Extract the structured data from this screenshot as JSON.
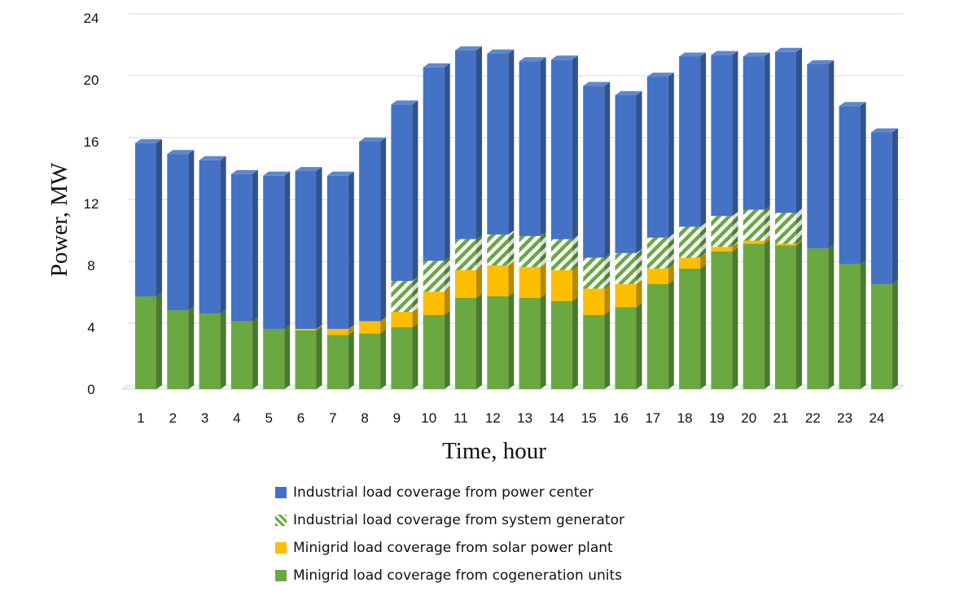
{
  "chart_data": {
    "type": "bar",
    "stacked": true,
    "three_d": true,
    "xlabel": "Time, hour",
    "ylabel": "Power, MW",
    "ylim": [
      0,
      24
    ],
    "yticks": [
      "0",
      "4",
      "8",
      "12",
      "16",
      "20",
      "24"
    ],
    "grid": true,
    "legend_position": "bottom",
    "categories": [
      "1",
      "2",
      "3",
      "4",
      "5",
      "6",
      "7",
      "8",
      "9",
      "10",
      "11",
      "12",
      "13",
      "14",
      "15",
      "16",
      "17",
      "18",
      "19",
      "20",
      "21",
      "22",
      "23",
      "24"
    ],
    "series": [
      {
        "name": "Minigrid load coverage from cogeneration units",
        "color": "#6aa842",
        "pattern": "solid",
        "values": [
          6.0,
          5.1,
          4.9,
          4.4,
          3.9,
          3.8,
          3.5,
          3.6,
          4.0,
          4.8,
          5.9,
          6.0,
          5.9,
          5.7,
          4.8,
          5.3,
          6.8,
          7.8,
          8.9,
          9.4,
          9.3,
          9.1,
          8.1,
          6.8
        ]
      },
      {
        "name": "Minigrid load coverage from solar power plant",
        "color": "#ffbe00",
        "pattern": "solid",
        "values": [
          0.0,
          0.0,
          0.0,
          0.0,
          0.0,
          0.1,
          0.4,
          0.8,
          1.0,
          1.5,
          1.8,
          2.0,
          2.0,
          2.0,
          1.7,
          1.5,
          1.0,
          0.7,
          0.3,
          0.2,
          0.1,
          0.0,
          0.0,
          0.0
        ]
      },
      {
        "name": "Industrial load coverage from system generator",
        "color": "#6aa842",
        "pattern": "hatch",
        "values": [
          0.0,
          0.0,
          0.0,
          0.0,
          0.0,
          0.0,
          0.0,
          0.0,
          2.0,
          2.0,
          2.0,
          2.0,
          2.0,
          2.0,
          2.0,
          2.0,
          2.0,
          2.0,
          2.0,
          2.0,
          2.0,
          0.0,
          0.0,
          0.0
        ]
      },
      {
        "name": "Industrial load coverage from power center",
        "color": "#4472c4",
        "pattern": "solid",
        "values": [
          9.9,
          10.1,
          9.9,
          9.5,
          9.9,
          10.2,
          9.9,
          11.6,
          11.4,
          12.5,
          12.2,
          11.7,
          11.3,
          11.6,
          11.1,
          10.2,
          10.4,
          11.0,
          10.4,
          9.9,
          10.4,
          11.9,
          10.2,
          9.8
        ]
      }
    ],
    "legend_order": [
      "Industrial load coverage from power center",
      "Industrial load coverage from system generator",
      "Minigrid load coverage from solar power plant",
      "Minigrid load coverage from cogeneration units"
    ]
  }
}
